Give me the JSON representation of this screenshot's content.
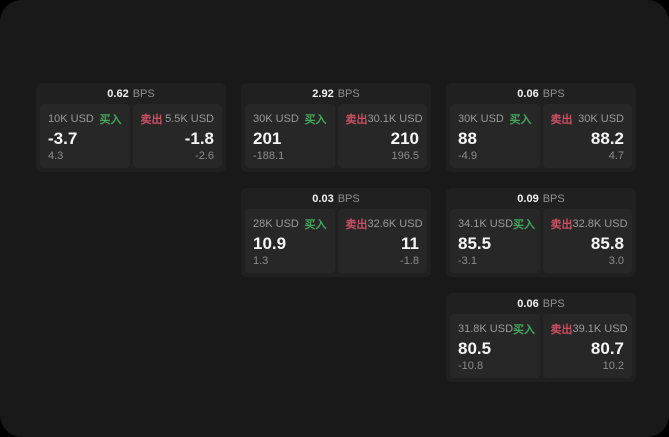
{
  "labels": {
    "bps_unit": "BPS",
    "buy": "买入",
    "sell": "卖出"
  },
  "colors": {
    "buy_green": "#42a65c",
    "sell_red": "#c94f63",
    "window_bg": "#191919",
    "card_bg": "#202020",
    "panel_bg": "#272727"
  },
  "cards": [
    {
      "bps": "0.62",
      "buy": {
        "amount": "10K USD",
        "price": "-3.7",
        "delta": "4.3"
      },
      "sell": {
        "amount": "5.5K USD",
        "price": "-1.8",
        "delta": "-2.6"
      }
    },
    {
      "bps": "2.92",
      "buy": {
        "amount": "30K USD",
        "price": "201",
        "delta": "-188.1"
      },
      "sell": {
        "amount": "30.1K USD",
        "price": "210",
        "delta": "196.5"
      }
    },
    {
      "bps": "0.06",
      "buy": {
        "amount": "30K USD",
        "price": "88",
        "delta": "-4.9"
      },
      "sell": {
        "amount": "30K USD",
        "price": "88.2",
        "delta": "4.7"
      }
    },
    {
      "bps": "0.03",
      "buy": {
        "amount": "28K USD",
        "price": "10.9",
        "delta": "1.3"
      },
      "sell": {
        "amount": "32.6K USD",
        "price": "11",
        "delta": "-1.8"
      }
    },
    {
      "bps": "0.09",
      "buy": {
        "amount": "34.1K USD",
        "price": "85.5",
        "delta": "-3.1"
      },
      "sell": {
        "amount": "32.8K USD",
        "price": "85.8",
        "delta": "3.0"
      }
    },
    {
      "bps": "0.06",
      "buy": {
        "amount": "31.8K USD",
        "price": "80.5",
        "delta": "-10.8"
      },
      "sell": {
        "amount": "39.1K USD",
        "price": "80.7",
        "delta": "10.2"
      }
    }
  ]
}
